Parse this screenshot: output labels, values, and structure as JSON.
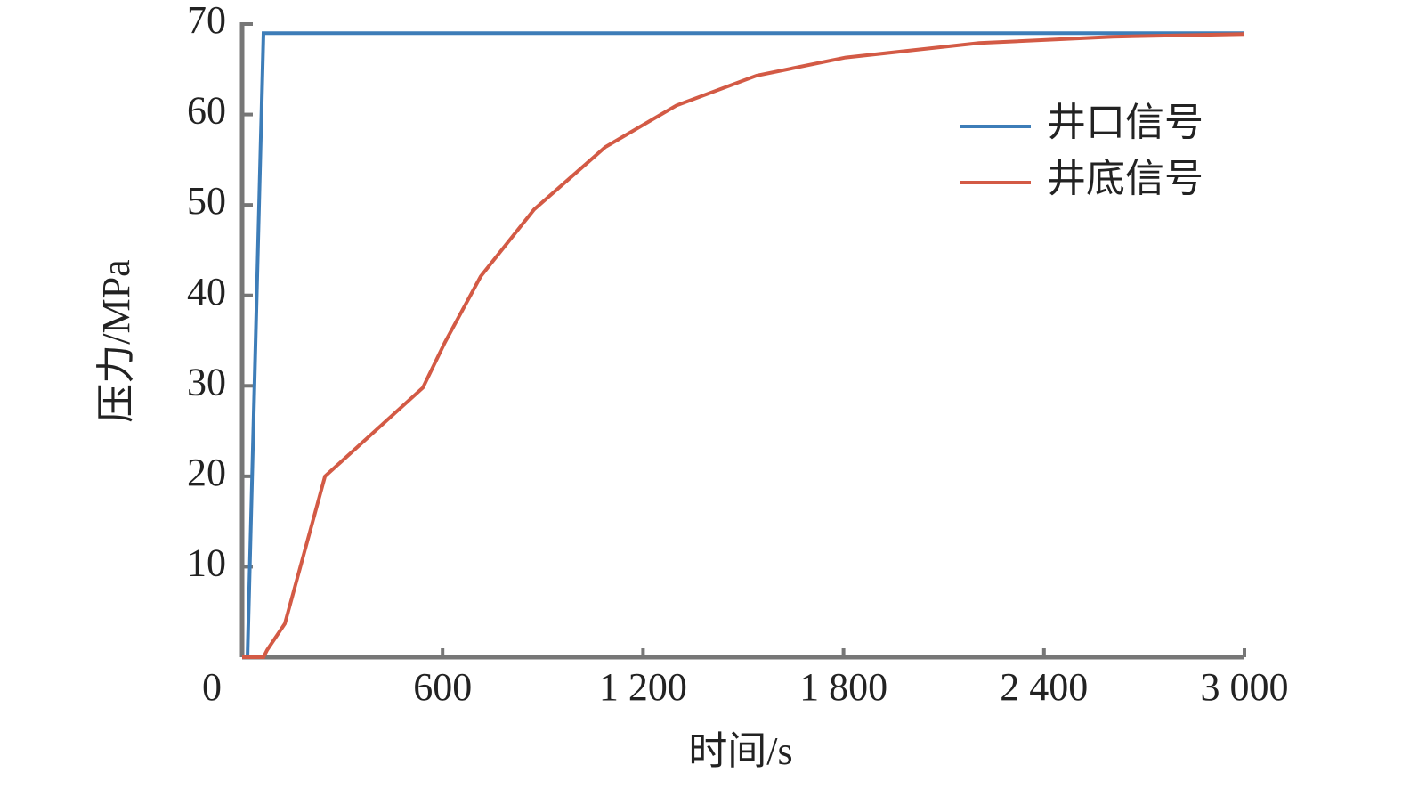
{
  "chart_data": {
    "type": "line",
    "x_label": "时间/s",
    "y_label": "压力/MPa",
    "xlim": [
      0,
      3000
    ],
    "ylim": [
      0,
      70
    ],
    "xticks": [
      0,
      600,
      {
        "value": 1200,
        "label": "1 200"
      },
      {
        "value": 1800,
        "label": "1 800"
      },
      {
        "value": 2400,
        "label": "2 400"
      },
      {
        "value": 3000,
        "label": "3 000"
      }
    ],
    "yticks": [
      10,
      20,
      30,
      40,
      50,
      60,
      70
    ],
    "legend": "upper right",
    "series": [
      {
        "name": "井口信号",
        "color": "#3d7db8",
        "x": [
          0,
          16,
          64,
          3000
        ],
        "values": [
          0,
          0,
          69,
          69
        ]
      },
      {
        "name": "井底信号",
        "color": "#d35a45",
        "x": [
          0,
          64,
          75,
          128,
          248,
          541,
          607,
          714,
          874,
          1087,
          1300,
          1540,
          1806,
          2206,
          2606,
          3000
        ],
        "values": [
          0,
          0,
          0.8,
          3.7,
          20,
          29.8,
          34.8,
          42.1,
          49.5,
          56.4,
          61,
          64.3,
          66.3,
          67.9,
          68.6,
          68.9
        ]
      }
    ]
  }
}
